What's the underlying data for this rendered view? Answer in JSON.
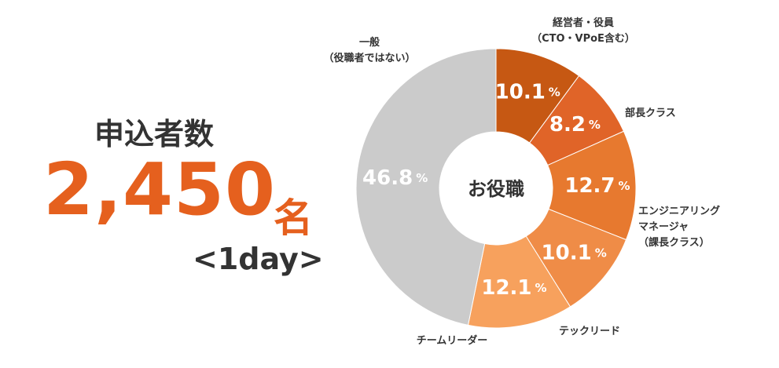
{
  "headline": {
    "label": "申込者数",
    "count": {
      "value": 2450,
      "label": "2,450"
    },
    "unit": "名",
    "period": "<1day>"
  },
  "chart_data": {
    "type": "donut",
    "center_label": "お役職",
    "unit": "%",
    "categories": [
      "経営者・役員\n（CTO・VPoE含む）",
      "部長クラス",
      "エンジニアリング\nマネージャ\n（課長クラス）",
      "テックリード",
      "チームリーダー",
      "一般\n（役職者ではない）"
    ],
    "values": [
      10.1,
      8.2,
      12.7,
      10.1,
      12.1,
      46.8
    ],
    "colors": [
      "#c65813",
      "#e06428",
      "#e7792f",
      "#ef8c47",
      "#f7a15d",
      "#cbcbcb"
    ]
  }
}
